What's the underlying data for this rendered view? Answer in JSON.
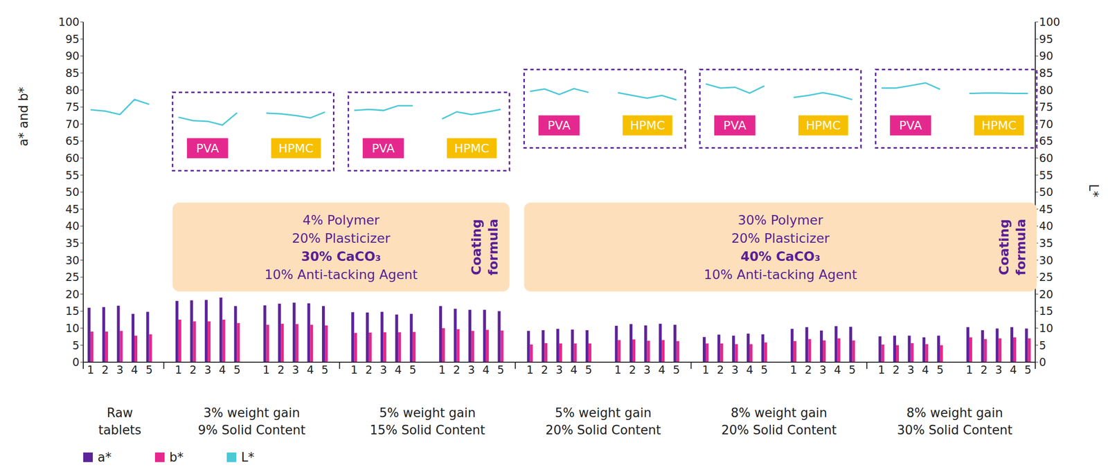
{
  "chart_data": {
    "type": "bar",
    "y_label": "a* and b*",
    "y2_label": "L*",
    "legend": "lower left",
    "grid": false,
    "categories": [
      "1",
      "2",
      "3",
      "4",
      "5",
      null,
      "1",
      "2",
      "3",
      "4",
      "5",
      null,
      "1",
      "2",
      "3",
      "4",
      "5",
      null,
      "1",
      "2",
      "3",
      "4",
      "5",
      null,
      "1",
      "2",
      "3",
      "4",
      "5",
      null,
      "1",
      "2",
      "3",
      "4",
      "5",
      null,
      "1",
      "2",
      "3",
      "4",
      "5",
      null,
      "1",
      "2",
      "3",
      "4",
      "5",
      null,
      "1",
      "2",
      "3",
      "4",
      "5",
      null,
      "1",
      "2",
      "3",
      "4",
      "5",
      null,
      "1",
      "2",
      "3",
      "4",
      "5"
    ],
    "ylim": [
      0,
      100
    ],
    "yticks": [
      0,
      5,
      10,
      15,
      20,
      25,
      30,
      35,
      40,
      45,
      50,
      55,
      60,
      65,
      70,
      75,
      80,
      85,
      90,
      95,
      100
    ],
    "y2lim": [
      0,
      100
    ],
    "y2ticks": [
      0,
      5,
      10,
      15,
      20,
      25,
      30,
      35,
      40,
      45,
      50,
      55,
      60,
      65,
      70,
      75,
      80,
      85,
      90,
      95,
      100
    ],
    "series": [
      {
        "name": "a*",
        "color": "#5c2499",
        "values": [
          16,
          16.2,
          16.6,
          14.2,
          14.8,
          null,
          18,
          18.2,
          18.3,
          19,
          16.5,
          null,
          16.7,
          17.2,
          17.5,
          17.3,
          16.5,
          null,
          14.7,
          14.6,
          14.8,
          14,
          14.2,
          null,
          16.5,
          15.7,
          15.4,
          15.4,
          15,
          null,
          9.2,
          9.4,
          9.8,
          9.6,
          9.4,
          null,
          10.7,
          11.2,
          10.8,
          11.3,
          11,
          null,
          7.4,
          8.1,
          7.8,
          8.4,
          8.2,
          null,
          9.8,
          10.3,
          9.3,
          10.6,
          10.4,
          null,
          7.6,
          7.8,
          7.8,
          7.3,
          7.8,
          null,
          10.3,
          9.4,
          9.9,
          10.3,
          9.9
        ]
      },
      {
        "name": "b*",
        "color": "#e5288d",
        "values": [
          9,
          9,
          9.2,
          7.8,
          8.2,
          null,
          12.5,
          12,
          12,
          12.5,
          11.5,
          null,
          11,
          11.3,
          11.2,
          11,
          10.8,
          null,
          8.6,
          8.7,
          8.8,
          8.8,
          8.9,
          null,
          10,
          9.7,
          9.2,
          9.5,
          9.3,
          null,
          5.2,
          5.6,
          5.5,
          5.5,
          5.5,
          null,
          6.5,
          6.7,
          6.3,
          6.5,
          6.2,
          null,
          5.5,
          5.5,
          5.3,
          5.3,
          5.8,
          null,
          6.2,
          6.8,
          6.4,
          7,
          6.4,
          null,
          5.2,
          5,
          5.6,
          5.3,
          5,
          null,
          7.3,
          6.8,
          7,
          7.3,
          7
        ]
      },
      {
        "name": "L*",
        "color": "#4dc9d6",
        "type": "line",
        "axis": "y2",
        "values": [
          74.2,
          73.8,
          72.8,
          77.2,
          75.8,
          null,
          72,
          71,
          70.8,
          69.7,
          73.3,
          null,
          73.2,
          73,
          72.5,
          71.8,
          73.5,
          null,
          74,
          74.3,
          74,
          75.4,
          75.4,
          null,
          71.5,
          73.6,
          72.8,
          73.5,
          74.3,
          null,
          79.6,
          80.3,
          78.7,
          80.4,
          79.3,
          null,
          79.2,
          78.4,
          77.6,
          78.4,
          77.1,
          null,
          81.8,
          80.6,
          80.8,
          79.1,
          81.2,
          null,
          77.8,
          78.4,
          79.2,
          78.4,
          77.2,
          null,
          80.6,
          80.6,
          81.3,
          82.1,
          80.2,
          null,
          79,
          79.1,
          79.1,
          79,
          79
        ]
      }
    ],
    "groups": [
      {
        "label": [
          "Raw",
          "tablets"
        ]
      },
      {
        "formula": {
          "lines_before": [
            "4% Polymer",
            "20% Plasticizer"
          ],
          "key_line": "30% CaCO₃",
          "lines_after": [
            "10% Anti-tacking Agent"
          ],
          "side_label": [
            "Coating",
            "formula"
          ]
        },
        "conditions": [
          {
            "label": [
              "3% weight gain",
              "9% Solid Content"
            ],
            "subgroups": [
              "PVA",
              "HPMC"
            ]
          },
          {
            "label": [
              "5% weight gain",
              "15% Solid Content"
            ],
            "subgroups": [
              "PVA",
              "HPMC"
            ]
          }
        ]
      },
      {
        "formula": {
          "lines_before": [
            "30% Polymer",
            "20% Plasticizer"
          ],
          "key_line": "40% CaCO₃",
          "lines_after": [
            "10% Anti-tacking Agent"
          ],
          "side_label": [
            "Coating",
            "formula"
          ]
        },
        "conditions": [
          {
            "label": [
              "5% weight gain",
              "20% Solid Content"
            ],
            "subgroups": [
              "PVA",
              "HPMC"
            ]
          },
          {
            "label": [
              "8% weight gain",
              "20% Solid Content"
            ],
            "subgroups": [
              "PVA",
              "HPMC"
            ]
          },
          {
            "label": [
              "8% weight gain",
              "30% Solid Content"
            ],
            "subgroups": [
              "PVA",
              "HPMC"
            ]
          }
        ]
      }
    ]
  }
}
